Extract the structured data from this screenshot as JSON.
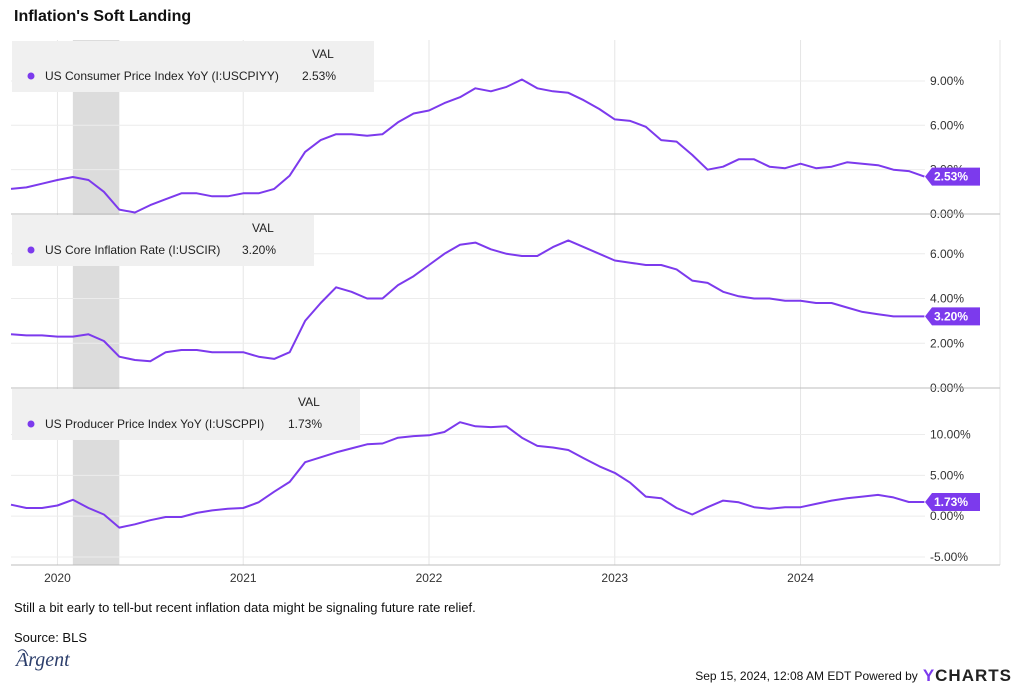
{
  "title": "Inflation's Soft Landing",
  "caption": "Still a bit early to tell-but recent inflation data might be signaling future rate relief.",
  "source": "Source: BLS",
  "logo_text": "Argent",
  "footer": {
    "timestamp": "Sep 15, 2024, 12:08 AM EDT Powered by",
    "brand": "YCHARTS"
  },
  "colors": {
    "line": "#7c3aed",
    "recession": "#dcdcdc",
    "legend_bg": "#f0f0f0"
  },
  "chart_data": [
    {
      "type": "line",
      "legend_header": "VAL",
      "series": [
        {
          "name": "US Consumer Price Index YoY (I:USCPIYY)",
          "last_label": "2.53%"
        }
      ],
      "yticks": [
        {
          "v": 0,
          "label": "0.00%"
        },
        {
          "v": 3,
          "label": "3.00%"
        },
        {
          "v": 6,
          "label": "6.00%"
        },
        {
          "v": 9,
          "label": "9.00%"
        }
      ],
      "ylim": [
        0,
        11.5
      ],
      "x": [
        2019.75,
        2019.833,
        2019.917,
        2020.0,
        2020.083,
        2020.167,
        2020.25,
        2020.333,
        2020.417,
        2020.5,
        2020.583,
        2020.667,
        2020.75,
        2020.833,
        2020.917,
        2021.0,
        2021.083,
        2021.167,
        2021.25,
        2021.333,
        2021.417,
        2021.5,
        2021.583,
        2021.667,
        2021.75,
        2021.833,
        2021.917,
        2022.0,
        2022.083,
        2022.167,
        2022.25,
        2022.333,
        2022.417,
        2022.5,
        2022.583,
        2022.667,
        2022.75,
        2022.833,
        2022.917,
        2023.0,
        2023.083,
        2023.167,
        2023.25,
        2023.333,
        2023.417,
        2023.5,
        2023.583,
        2023.667,
        2023.75,
        2023.833,
        2023.917,
        2024.0,
        2024.083,
        2024.167,
        2024.25,
        2024.333,
        2024.417,
        2024.5,
        2024.583,
        2024.667
      ],
      "values": [
        1.7,
        1.8,
        2.05,
        2.3,
        2.5,
        2.3,
        1.5,
        0.3,
        0.1,
        0.6,
        1.0,
        1.4,
        1.4,
        1.2,
        1.2,
        1.4,
        1.4,
        1.7,
        2.6,
        4.2,
        5.0,
        5.4,
        5.4,
        5.3,
        5.4,
        6.2,
        6.8,
        7.0,
        7.5,
        7.9,
        8.5,
        8.3,
        8.6,
        9.1,
        8.5,
        8.3,
        8.2,
        7.7,
        7.1,
        6.4,
        6.3,
        5.9,
        5.0,
        4.9,
        4.0,
        3.0,
        3.2,
        3.7,
        3.7,
        3.2,
        3.1,
        3.4,
        3.1,
        3.2,
        3.5,
        3.4,
        3.3,
        3.0,
        2.9,
        2.53
      ]
    },
    {
      "type": "line",
      "legend_header": "VAL",
      "series": [
        {
          "name": "US Core Inflation Rate (I:USCIR)",
          "last_label": "3.20%"
        }
      ],
      "yticks": [
        {
          "v": 0,
          "label": "0.00%"
        },
        {
          "v": 2,
          "label": "2.00%"
        },
        {
          "v": 4,
          "label": "4.00%"
        },
        {
          "v": 6,
          "label": "6.00%"
        }
      ],
      "ylim": [
        0,
        7.6
      ],
      "x": [
        2019.75,
        2019.833,
        2019.917,
        2020.0,
        2020.083,
        2020.167,
        2020.25,
        2020.333,
        2020.417,
        2020.5,
        2020.583,
        2020.667,
        2020.75,
        2020.833,
        2020.917,
        2021.0,
        2021.083,
        2021.167,
        2021.25,
        2021.333,
        2021.417,
        2021.5,
        2021.583,
        2021.667,
        2021.75,
        2021.833,
        2021.917,
        2022.0,
        2022.083,
        2022.167,
        2022.25,
        2022.333,
        2022.417,
        2022.5,
        2022.583,
        2022.667,
        2022.75,
        2022.833,
        2022.917,
        2023.0,
        2023.083,
        2023.167,
        2023.25,
        2023.333,
        2023.417,
        2023.5,
        2023.583,
        2023.667,
        2023.75,
        2023.833,
        2023.917,
        2024.0,
        2024.083,
        2024.167,
        2024.25,
        2024.333,
        2024.417,
        2024.5,
        2024.583,
        2024.667
      ],
      "values": [
        2.4,
        2.35,
        2.35,
        2.3,
        2.3,
        2.4,
        2.1,
        1.4,
        1.25,
        1.2,
        1.6,
        1.7,
        1.7,
        1.6,
        1.6,
        1.6,
        1.4,
        1.3,
        1.6,
        3.0,
        3.8,
        4.5,
        4.3,
        4.0,
        4.0,
        4.6,
        5.0,
        5.5,
        6.0,
        6.4,
        6.5,
        6.2,
        6.0,
        5.9,
        5.9,
        6.3,
        6.6,
        6.3,
        6.0,
        5.7,
        5.6,
        5.5,
        5.5,
        5.3,
        4.8,
        4.7,
        4.3,
        4.1,
        4.0,
        4.0,
        3.9,
        3.9,
        3.8,
        3.8,
        3.6,
        3.4,
        3.3,
        3.2,
        3.2,
        3.2
      ]
    },
    {
      "type": "line",
      "legend_header": "VAL",
      "series": [
        {
          "name": "US Producer Price Index YoY (I:USCPPI)",
          "last_label": "1.73%"
        }
      ],
      "yticks": [
        {
          "v": -5,
          "label": "-5.00%"
        },
        {
          "v": 0,
          "label": "0.00%"
        },
        {
          "v": 5,
          "label": "5.00%"
        },
        {
          "v": 10,
          "label": "10.00%"
        }
      ],
      "ylim": [
        -5,
        15.2
      ],
      "x": [
        2019.75,
        2019.833,
        2019.917,
        2020.0,
        2020.083,
        2020.167,
        2020.25,
        2020.333,
        2020.417,
        2020.5,
        2020.583,
        2020.667,
        2020.75,
        2020.833,
        2020.917,
        2021.0,
        2021.083,
        2021.167,
        2021.25,
        2021.333,
        2021.417,
        2021.5,
        2021.583,
        2021.667,
        2021.75,
        2021.833,
        2021.917,
        2022.0,
        2022.083,
        2022.167,
        2022.25,
        2022.333,
        2022.417,
        2022.5,
        2022.583,
        2022.667,
        2022.75,
        2022.833,
        2022.917,
        2023.0,
        2023.083,
        2023.167,
        2023.25,
        2023.333,
        2023.417,
        2023.5,
        2023.583,
        2023.667,
        2023.75,
        2023.833,
        2023.917,
        2024.0,
        2024.083,
        2024.167,
        2024.25,
        2024.333,
        2024.417,
        2024.5,
        2024.583,
        2024.667
      ],
      "values": [
        1.4,
        1.0,
        1.0,
        1.3,
        2.0,
        1.0,
        0.2,
        -1.4,
        -1.0,
        -0.5,
        -0.1,
        -0.1,
        0.4,
        0.7,
        0.9,
        1.0,
        1.7,
        3.0,
        4.2,
        6.6,
        7.2,
        7.8,
        8.3,
        8.8,
        8.9,
        9.6,
        9.8,
        9.9,
        10.3,
        11.5,
        11.0,
        10.9,
        11.0,
        9.6,
        8.6,
        8.4,
        8.1,
        7.1,
        6.1,
        5.3,
        4.1,
        2.4,
        2.2,
        1.0,
        0.2,
        1.1,
        1.9,
        1.7,
        1.1,
        0.9,
        1.1,
        1.1,
        1.5,
        1.9,
        2.2,
        2.4,
        2.6,
        2.3,
        1.73,
        1.73
      ]
    }
  ],
  "x_axis": {
    "ticks": [
      {
        "v": 2020,
        "label": "2020"
      },
      {
        "v": 2021,
        "label": "2021"
      },
      {
        "v": 2022,
        "label": "2022"
      },
      {
        "v": 2023,
        "label": "2023"
      },
      {
        "v": 2024,
        "label": "2024"
      }
    ],
    "xlim": [
      2019.75,
      2024.67
    ]
  },
  "recession": [
    2020.083,
    2020.333
  ]
}
